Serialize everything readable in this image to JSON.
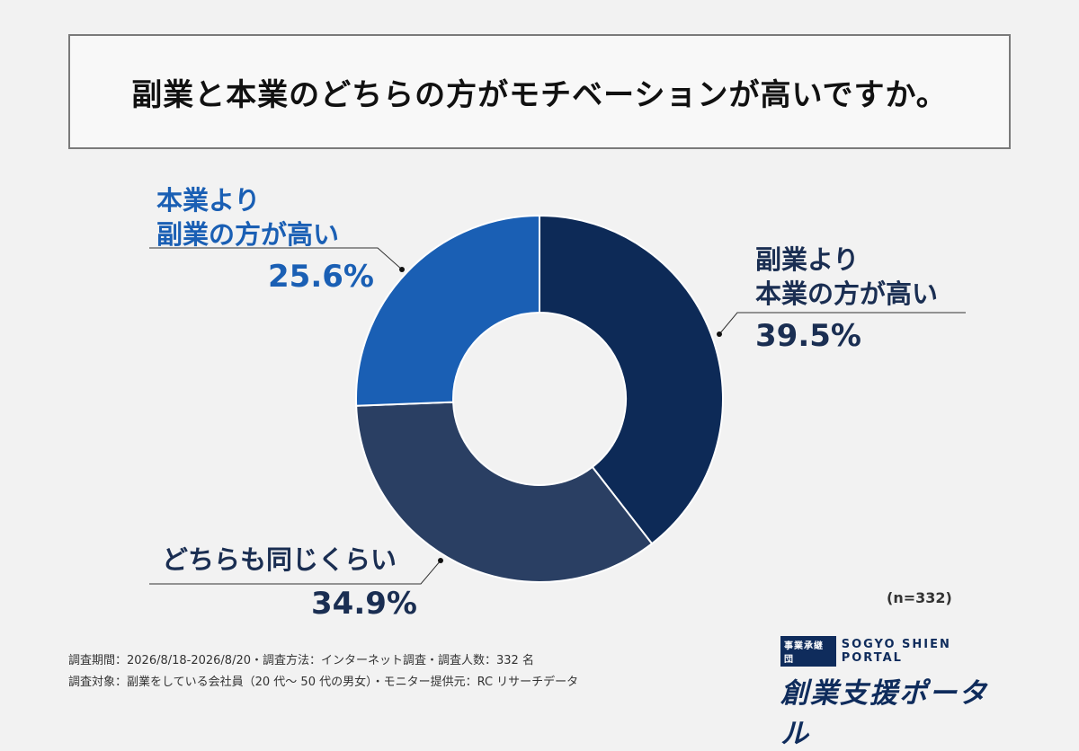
{
  "title": "副業と本業のどちらの方がモチベーションが高いですか。",
  "chart_data": {
    "type": "pie",
    "donut": true,
    "title": "副業と本業のどちらの方がモチベーションが高いですか。",
    "slices": [
      {
        "line1": "副業より",
        "line2": "本業の方が高い",
        "value": 39.5,
        "label": "39.5%",
        "color": "#0d2a57",
        "label_color": "#1a2e52"
      },
      {
        "line1": "どちらも同じくらい",
        "line2": "",
        "value": 34.9,
        "label": "34.9%",
        "color": "#2a3f63",
        "label_color": "#1a2e52"
      },
      {
        "line1": "本業より",
        "line2": "副業の方が高い",
        "value": 25.6,
        "label": "25.6%",
        "color": "#1a5fb4",
        "label_color": "#1a5fb4"
      }
    ],
    "sample_size": "(n=332)"
  },
  "footer": {
    "line1": "調査期間：2026/8/18-2026/8/20・調査方法：インターネット調査・調査人数：332 名",
    "line2": "調査対象：副業をしている会社員（20 代～ 50 代の男女）・モニター提供元：RC リサーチデータ"
  },
  "logo": {
    "badge": "事業承継団",
    "english": "SOGYO SHIEN PORTAL",
    "japanese": "創業支援ポータル"
  }
}
